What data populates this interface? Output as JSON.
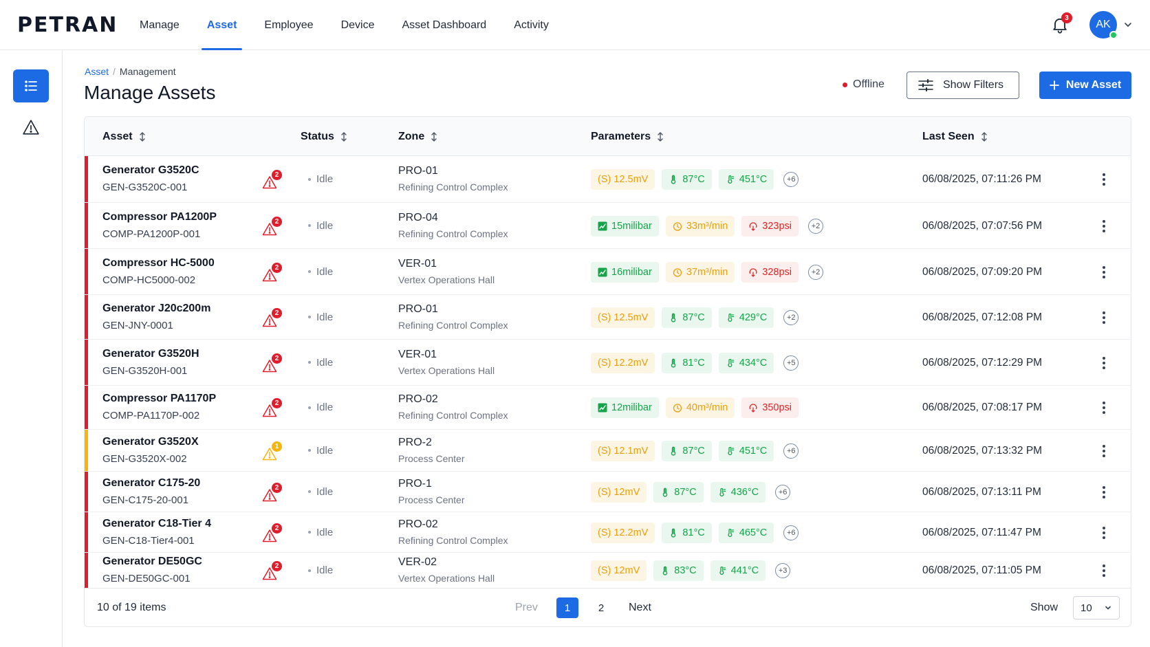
{
  "app": {
    "logo": "PETRAN"
  },
  "nav": {
    "items": [
      {
        "label": "Manage"
      },
      {
        "label": "Asset",
        "active": true
      },
      {
        "label": "Employee"
      },
      {
        "label": "Device"
      },
      {
        "label": "Asset Dashboard"
      },
      {
        "label": "Activity"
      }
    ],
    "notifications_count": "3",
    "avatar_initials": "AK",
    "accent_color": "#1d6ae5"
  },
  "breadcrumb": {
    "parent": "Asset",
    "separator": "/",
    "current": "Management"
  },
  "page": {
    "title": "Manage Assets",
    "connection_status": "Offline",
    "show_filters_label": "Show Filters",
    "new_asset_label": "New Asset"
  },
  "table": {
    "columns": {
      "asset": "Asset",
      "status": "Status",
      "zone": "Zone",
      "parameters": "Parameters",
      "last_seen": "Last Seen"
    },
    "rows": [
      {
        "name": "Generator G3520C",
        "id": "GEN-G3520C-001",
        "severity": "critical",
        "alerts": "2",
        "status": "Idle",
        "zone_code": "PRO-01",
        "zone_name": "Refining Control Complex",
        "params": [
          {
            "text": "(S) 12.5mV",
            "tone": "amber",
            "icon": "signal-icon"
          },
          {
            "text": "87°C",
            "tone": "green",
            "icon": "thermometer-icon"
          },
          {
            "text": "451°C",
            "tone": "green",
            "icon": "exhaust-temp-icon"
          }
        ],
        "more": "+6",
        "last_seen": "06/08/2025, 07:11:26 PM"
      },
      {
        "name": "Compressor PA1200P",
        "id": "COMP-PA1200P-001",
        "severity": "critical",
        "alerts": "2",
        "status": "Idle",
        "zone_code": "PRO-04",
        "zone_name": "Refining Control Complex",
        "params": [
          {
            "text": "15milibar",
            "tone": "green",
            "icon": "pressure-icon"
          },
          {
            "text": "33m³/min",
            "tone": "amber",
            "icon": "flow-icon"
          },
          {
            "text": "323psi",
            "tone": "red",
            "icon": "gauge-icon"
          }
        ],
        "more": "+2",
        "last_seen": "06/08/2025, 07:07:56 PM"
      },
      {
        "name": "Compressor HC-5000",
        "id": "COMP-HC5000-002",
        "severity": "critical",
        "alerts": "2",
        "status": "Idle",
        "zone_code": "VER-01",
        "zone_name": "Vertex Operations Hall",
        "params": [
          {
            "text": "16milibar",
            "tone": "green",
            "icon": "pressure-icon"
          },
          {
            "text": "37m³/min",
            "tone": "amber",
            "icon": "flow-icon"
          },
          {
            "text": "328psi",
            "tone": "red",
            "icon": "gauge-icon"
          }
        ],
        "more": "+2",
        "last_seen": "06/08/2025, 07:09:20 PM"
      },
      {
        "name": "Generator J20c200m",
        "id": "GEN-JNY-0001",
        "severity": "critical",
        "alerts": "2",
        "status": "Idle",
        "zone_code": "PRO-01",
        "zone_name": "Refining Control Complex",
        "params": [
          {
            "text": "(S) 12.5mV",
            "tone": "amber",
            "icon": "signal-icon"
          },
          {
            "text": "87°C",
            "tone": "green",
            "icon": "thermometer-icon"
          },
          {
            "text": "429°C",
            "tone": "green",
            "icon": "exhaust-temp-icon"
          }
        ],
        "more": "+2",
        "last_seen": "06/08/2025, 07:12:08 PM"
      },
      {
        "name": "Generator G3520H",
        "id": "GEN-G3520H-001",
        "severity": "critical",
        "alerts": "2",
        "status": "Idle",
        "zone_code": "VER-01",
        "zone_name": "Vertex Operations Hall",
        "params": [
          {
            "text": "(S) 12.2mV",
            "tone": "amber",
            "icon": "signal-icon"
          },
          {
            "text": "81°C",
            "tone": "green",
            "icon": "thermometer-icon"
          },
          {
            "text": "434°C",
            "tone": "green",
            "icon": "exhaust-temp-icon"
          }
        ],
        "more": "+5",
        "last_seen": "06/08/2025, 07:12:29 PM"
      },
      {
        "name": "Compressor PA1170P",
        "id": "COMP-PA1170P-002",
        "severity": "critical",
        "alerts": "2",
        "status": "Idle",
        "zone_code": "PRO-02",
        "zone_name": "Refining Control Complex",
        "params": [
          {
            "text": "12milibar",
            "tone": "green",
            "icon": "pressure-icon"
          },
          {
            "text": "40m³/min",
            "tone": "amber",
            "icon": "flow-icon"
          },
          {
            "text": "350psi",
            "tone": "red",
            "icon": "gauge-icon"
          }
        ],
        "more": "",
        "last_seen": "06/08/2025, 07:08:17 PM"
      },
      {
        "name": "Generator G3520X",
        "id": "GEN-G3520X-002",
        "severity": "warning",
        "alerts": "1",
        "status": "Idle",
        "zone_code": "PRO-2",
        "zone_name": "Process Center",
        "params": [
          {
            "text": "(S) 12.1mV",
            "tone": "amber",
            "icon": "signal-icon"
          },
          {
            "text": "87°C",
            "tone": "green",
            "icon": "thermometer-icon"
          },
          {
            "text": "451°C",
            "tone": "green",
            "icon": "exhaust-temp-icon"
          }
        ],
        "more": "+6",
        "last_seen": "06/08/2025, 07:13:32 PM"
      },
      {
        "name": "Generator C175-20",
        "id": "GEN-C175-20-001",
        "severity": "critical",
        "alerts": "2",
        "status": "Idle",
        "zone_code": "PRO-1",
        "zone_name": "Process Center",
        "params": [
          {
            "text": "(S) 12mV",
            "tone": "amber",
            "icon": "signal-icon"
          },
          {
            "text": "87°C",
            "tone": "green",
            "icon": "thermometer-icon"
          },
          {
            "text": "436°C",
            "tone": "green",
            "icon": "exhaust-temp-icon"
          }
        ],
        "more": "+6",
        "last_seen": "06/08/2025, 07:13:11 PM"
      },
      {
        "name": "Generator C18-Tier 4",
        "id": "GEN-C18-Tier4-001",
        "severity": "critical",
        "alerts": "2",
        "status": "Idle",
        "zone_code": "PRO-02",
        "zone_name": "Refining Control Complex",
        "params": [
          {
            "text": "(S) 12.2mV",
            "tone": "amber",
            "icon": "signal-icon"
          },
          {
            "text": "81°C",
            "tone": "green",
            "icon": "thermometer-icon"
          },
          {
            "text": "465°C",
            "tone": "green",
            "icon": "exhaust-temp-icon"
          }
        ],
        "more": "+6",
        "last_seen": "06/08/2025, 07:11:47 PM"
      },
      {
        "name": "Generator DE50GC",
        "id": "GEN-DE50GC-001",
        "severity": "critical",
        "alerts": "2",
        "status": "Idle",
        "zone_code": "VER-02",
        "zone_name": "Vertex Operations Hall",
        "params": [
          {
            "text": "(S) 12mV",
            "tone": "amber",
            "icon": "signal-icon"
          },
          {
            "text": "83°C",
            "tone": "green",
            "icon": "thermometer-icon"
          },
          {
            "text": "441°C",
            "tone": "green",
            "icon": "exhaust-temp-icon"
          }
        ],
        "more": "+3",
        "last_seen": "06/08/2025, 07:11:05 PM"
      }
    ]
  },
  "pagination": {
    "summary": "10 of 19 items",
    "prev": "Prev",
    "pages": [
      "1",
      "2"
    ],
    "next": "Next",
    "show_label": "Show",
    "page_size": "10"
  },
  "colors": {
    "critical": "#e11d2b",
    "warning": "#f5b50a",
    "primary": "#1d6ae5"
  }
}
